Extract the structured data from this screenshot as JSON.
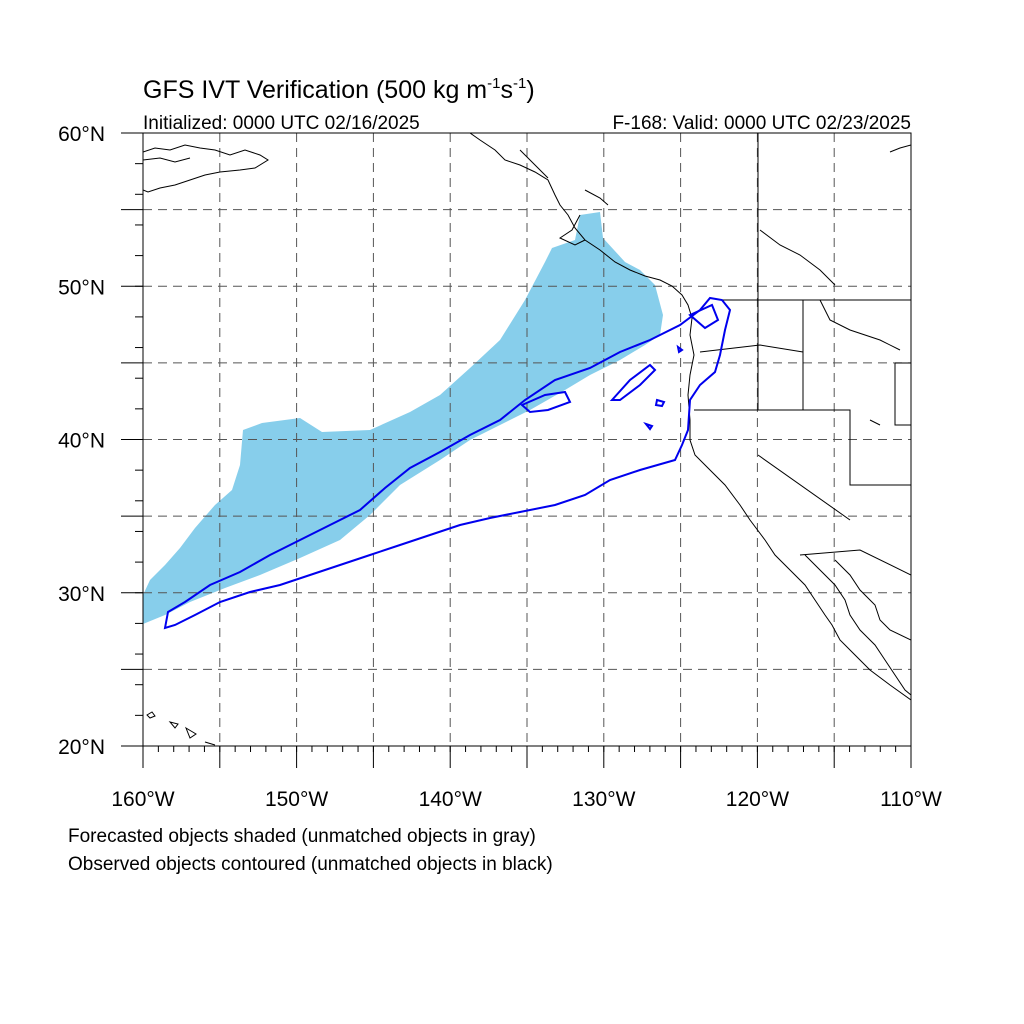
{
  "title": {
    "main": "GFS IVT Verification (500 kg m",
    "sup1": "-1",
    "mid": "s",
    "sup2": "-1",
    "close": ")"
  },
  "subtitle_left": "Initialized: 0000 UTC 02/16/2025",
  "subtitle_right": "F-168: Valid: 0000 UTC 02/23/2025",
  "map": {
    "lon_range": [
      -160,
      -110
    ],
    "lat_range": [
      20,
      60
    ],
    "lon_ticks": [
      {
        "value": -160,
        "label": "160°W"
      },
      {
        "value": -150,
        "label": "150°W"
      },
      {
        "value": -140,
        "label": "140°W"
      },
      {
        "value": -130,
        "label": "130°W"
      },
      {
        "value": -120,
        "label": "120°W"
      },
      {
        "value": -110,
        "label": "110°W"
      }
    ],
    "lat_ticks": [
      {
        "value": 60,
        "label": "60°N"
      },
      {
        "value": 50,
        "label": "50°N"
      },
      {
        "value": 40,
        "label": "40°N"
      },
      {
        "value": 30,
        "label": "30°N"
      },
      {
        "value": 20,
        "label": "20°N"
      }
    ],
    "grid_lons": [
      -155,
      -150,
      -145,
      -140,
      -135,
      -130,
      -125,
      -120,
      -115
    ],
    "grid_lats": [
      55,
      50,
      45,
      40,
      35,
      30,
      25
    ],
    "forecast_color": "#87ceeb",
    "observed_color": "#0000ee",
    "coast_color": "#000000"
  },
  "legend": {
    "line1": "Forecasted objects shaded (unmatched objects in gray)",
    "line2": "Observed objects contoured (unmatched objects in black)"
  }
}
